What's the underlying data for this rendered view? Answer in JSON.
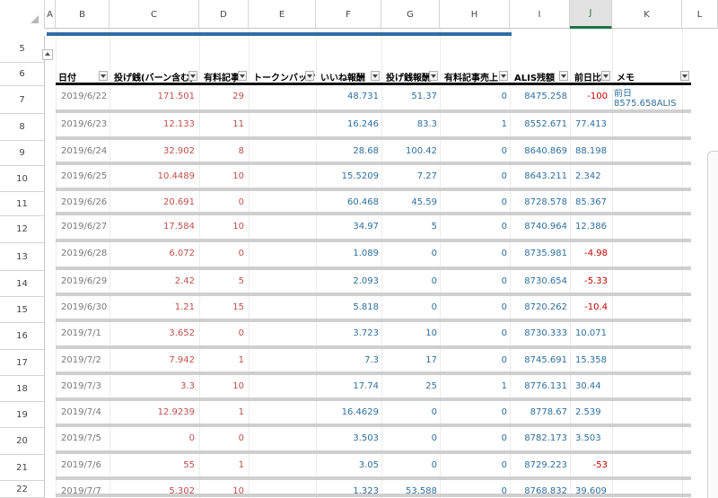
{
  "columns": [
    "A",
    "B",
    "C",
    "D",
    "E",
    "F",
    "G",
    "H",
    "I",
    "J",
    "K",
    "L"
  ],
  "selected_column": "J",
  "row_numbers": [
    "5",
    "6",
    "7",
    "8",
    "9",
    "10",
    "11",
    "12",
    "13",
    "14",
    "15",
    "16",
    "17",
    "18",
    "19",
    "20",
    "21",
    "22"
  ],
  "headers": [
    "日付",
    "投げ銭(バーン含む)",
    "有料記事",
    "トークンバック",
    "いいね報酬",
    "投げ銭報酬",
    "有料記事売上",
    "ALIS残額",
    "前日比",
    "メモ"
  ],
  "rows": [
    {
      "date": "2019/6/22",
      "nage": "171.501",
      "yuryo": "29",
      "iine": "48.731",
      "nagehou": "51.37",
      "uriage": "0",
      "alis": "8475.258",
      "diff": "-100",
      "memo": "前日\n8575.658ALIS"
    },
    {
      "date": "2019/6/23",
      "nage": "12.133",
      "yuryo": "11",
      "iine": "16.246",
      "nagehou": "83.3",
      "uriage": "1",
      "alis": "8552.671",
      "diff": "77.413",
      "memo": ""
    },
    {
      "date": "2019/6/24",
      "nage": "32.902",
      "yuryo": "8",
      "iine": "28.68",
      "nagehou": "100.42",
      "uriage": "0",
      "alis": "8640.869",
      "diff": "88.198",
      "memo": ""
    },
    {
      "date": "2019/6/25",
      "nage": "10.4489",
      "yuryo": "10",
      "iine": "15.5209",
      "nagehou": "7.27",
      "uriage": "0",
      "alis": "8643.211",
      "diff": "2.342",
      "memo": ""
    },
    {
      "date": "2019/6/26",
      "nage": "20.691",
      "yuryo": "0",
      "iine": "60.468",
      "nagehou": "45.59",
      "uriage": "0",
      "alis": "8728.578",
      "diff": "85.367",
      "memo": ""
    },
    {
      "date": "2019/6/27",
      "nage": "17.584",
      "yuryo": "10",
      "iine": "34.97",
      "nagehou": "5",
      "uriage": "0",
      "alis": "8740.964",
      "diff": "12.386",
      "memo": ""
    },
    {
      "date": "2019/6/28",
      "nage": "6.072",
      "yuryo": "0",
      "iine": "1.089",
      "nagehou": "0",
      "uriage": "0",
      "alis": "8735.981",
      "diff": "-4.98",
      "memo": ""
    },
    {
      "date": "2019/6/29",
      "nage": "2.42",
      "yuryo": "5",
      "iine": "2.093",
      "nagehou": "0",
      "uriage": "0",
      "alis": "8730.654",
      "diff": "-5.33",
      "memo": ""
    },
    {
      "date": "2019/6/30",
      "nage": "1.21",
      "yuryo": "15",
      "iine": "5.818",
      "nagehou": "0",
      "uriage": "0",
      "alis": "8720.262",
      "diff": "-10.4",
      "memo": ""
    },
    {
      "date": "2019/7/1",
      "nage": "3.652",
      "yuryo": "0",
      "iine": "3.723",
      "nagehou": "10",
      "uriage": "0",
      "alis": "8730.333",
      "diff": "10.071",
      "memo": ""
    },
    {
      "date": "2019/7/2",
      "nage": "7.942",
      "yuryo": "1",
      "iine": "7.3",
      "nagehou": "17",
      "uriage": "0",
      "alis": "8745.691",
      "diff": "15.358",
      "memo": ""
    },
    {
      "date": "2019/7/3",
      "nage": "3.3",
      "yuryo": "10",
      "iine": "17.74",
      "nagehou": "25",
      "uriage": "1",
      "alis": "8776.131",
      "diff": "30.44",
      "memo": ""
    },
    {
      "date": "2019/7/4",
      "nage": "12.9239",
      "yuryo": "1",
      "iine": "16.4629",
      "nagehou": "0",
      "uriage": "0",
      "alis": "8778.67",
      "diff": "2.539",
      "memo": ""
    },
    {
      "date": "2019/7/5",
      "nage": "0",
      "yuryo": "0",
      "iine": "3.503",
      "nagehou": "0",
      "uriage": "0",
      "alis": "8782.173",
      "diff": "3.503",
      "memo": ""
    },
    {
      "date": "2019/7/6",
      "nage": "55",
      "yuryo": "1",
      "iine": "3.05",
      "nagehou": "0",
      "uriage": "0",
      "alis": "8729.223",
      "diff": "-53",
      "memo": ""
    },
    {
      "date": "2019/7/7",
      "nage": "5.302",
      "yuryo": "10",
      "iine": "1.323",
      "nagehou": "53.588",
      "uriage": "0",
      "alis": "8768.832",
      "diff": "39.609",
      "memo": ""
    }
  ],
  "colors": {
    "accent": "#2e6da4",
    "selected": "#217346",
    "negative": "#c00000",
    "positive": "#2f6f9f",
    "spent": "#c0504d"
  }
}
